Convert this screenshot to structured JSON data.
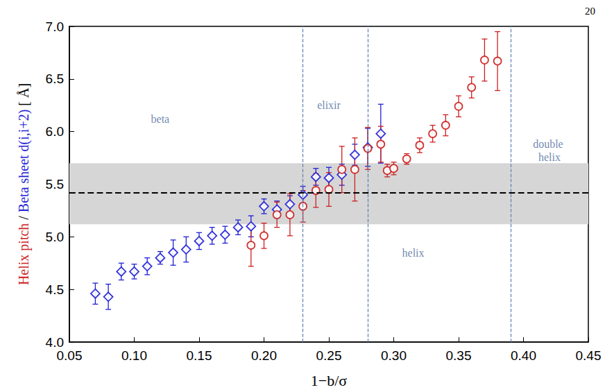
{
  "chart_data": {
    "type": "scatter",
    "page_number": "20",
    "xlabel": "1−b/σ",
    "ylabel": "Helix pitch / Beta sheet d(i,i+2) [ Å]",
    "xlim": [
      0.05,
      0.45
    ],
    "xticks": [
      0.05,
      {
        "value": 0.1,
        "label": "0.10"
      },
      0.15,
      {
        "value": 0.2,
        "label": "0.20"
      },
      0.25,
      {
        "value": 0.3,
        "label": "0.30"
      },
      0.35,
      {
        "value": 0.4,
        "label": "0.40"
      },
      0.45
    ],
    "ylim": [
      4,
      7
    ],
    "yticks": [
      {
        "value": 4,
        "label": "4.0"
      },
      4.5,
      {
        "value": 5,
        "label": "5.0"
      },
      5.5,
      {
        "value": 6,
        "label": "6.0"
      },
      6.5,
      {
        "value": 7,
        "label": "7.0"
      }
    ],
    "grid": false,
    "series": [
      {
        "name": "Beta sheet d(i,i+2)",
        "color": "#1f1fd6",
        "marker": "diamond",
        "x": [
          0.07,
          0.08,
          0.09,
          0.1,
          0.11,
          0.12,
          0.13,
          0.14,
          0.15,
          0.16,
          0.17,
          0.18,
          0.19,
          0.2,
          0.21,
          0.22,
          0.23,
          0.24,
          0.25,
          0.26,
          0.27,
          0.28,
          0.29
        ],
        "values": [
          4.46,
          4.43,
          4.67,
          4.67,
          4.72,
          4.8,
          4.85,
          4.88,
          4.96,
          5.01,
          5.02,
          5.09,
          5.1,
          5.29,
          5.26,
          5.31,
          5.4,
          5.57,
          5.56,
          5.59,
          5.78,
          5.85,
          5.98
        ],
        "errors": [
          0.1,
          0.12,
          0.08,
          0.07,
          0.08,
          0.06,
          0.12,
          0.12,
          0.08,
          0.08,
          0.08,
          0.07,
          0.1,
          0.07,
          0.08,
          0.08,
          0.08,
          0.08,
          0.1,
          0.1,
          0.1,
          0.18,
          0.28
        ]
      },
      {
        "name": "Helix pitch",
        "color": "#cc1f1f",
        "marker": "circle",
        "x": [
          0.19,
          0.2,
          0.21,
          0.22,
          0.23,
          0.24,
          0.25,
          0.26,
          0.27,
          0.28,
          0.29,
          0.295,
          0.3,
          0.31,
          0.32,
          0.33,
          0.34,
          0.35,
          0.36,
          0.37,
          0.38
        ],
        "values": [
          4.92,
          5.01,
          5.21,
          5.21,
          5.29,
          5.44,
          5.45,
          5.64,
          5.64,
          5.84,
          5.88,
          5.63,
          5.65,
          5.74,
          5.87,
          5.98,
          6.06,
          6.24,
          6.42,
          6.68,
          6.67
        ],
        "errors": [
          0.2,
          0.12,
          0.12,
          0.2,
          0.15,
          0.16,
          0.16,
          0.22,
          0.3,
          0.2,
          0.17,
          0.06,
          0.06,
          0.05,
          0.07,
          0.08,
          0.1,
          0.1,
          0.1,
          0.2,
          0.28
        ]
      }
    ],
    "hline": 5.42,
    "band": [
      5.12,
      5.7
    ],
    "vlines": [
      0.225,
      0.275,
      0.387
    ],
    "annotations": [
      {
        "text": "beta",
        "x": 0.12,
        "y": 6.12
      },
      {
        "text": "elixir",
        "x": 0.25,
        "y": 6.25
      },
      {
        "text": "helix",
        "x": 0.315,
        "y": 4.85
      },
      {
        "text": "double helix",
        "x": 0.42,
        "y": 5.82
      }
    ]
  }
}
